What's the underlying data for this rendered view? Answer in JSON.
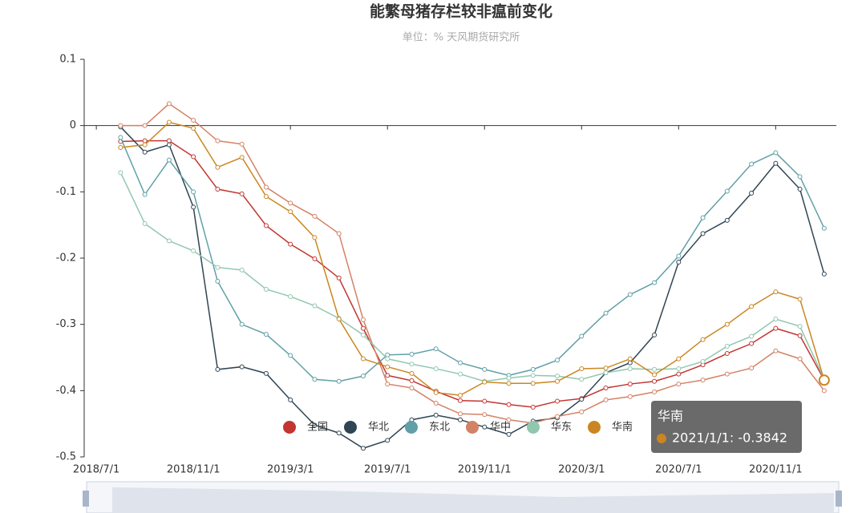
{
  "chart_data": {
    "type": "line",
    "title": "能繁母猪存栏较非瘟前变化",
    "subtitle": "单位：%    天风期货研究所",
    "x": [
      "2018/8/1",
      "2018/9/1",
      "2018/10/1",
      "2018/11/1",
      "2018/12/1",
      "2019/1/1",
      "2019/2/1",
      "2019/3/1",
      "2019/4/1",
      "2019/5/1",
      "2019/6/1",
      "2019/7/1",
      "2019/8/1",
      "2019/9/1",
      "2019/10/1",
      "2019/11/1",
      "2019/12/1",
      "2020/1/1",
      "2020/2/1",
      "2020/3/1",
      "2020/4/1",
      "2020/5/1",
      "2020/6/1",
      "2020/7/1",
      "2020/8/1",
      "2020/9/1",
      "2020/10/1",
      "2020/11/1",
      "2020/12/1",
      "2021/1/1"
    ],
    "xticks": [
      "2018/7/1",
      "2018/11/1",
      "2019/3/1",
      "2019/7/1",
      "2019/11/1",
      "2020/3/1",
      "2020/7/1",
      "2020/11/1"
    ],
    "ylim": [
      -0.5,
      0.1
    ],
    "yticks": [
      0.1,
      0,
      -0.1,
      -0.2,
      -0.3,
      -0.4,
      -0.5
    ],
    "series": [
      {
        "name": "全国",
        "color": "#c23531",
        "values": [
          -0.024,
          -0.023,
          -0.023,
          -0.047,
          -0.096,
          -0.103,
          -0.151,
          -0.179,
          -0.201,
          -0.23,
          -0.306,
          -0.377,
          -0.385,
          -0.401,
          -0.415,
          -0.416,
          -0.421,
          -0.425,
          -0.416,
          -0.412,
          -0.396,
          -0.39,
          -0.386,
          -0.375,
          -0.361,
          -0.344,
          -0.329,
          -0.306,
          -0.317,
          -0.384
        ]
      },
      {
        "name": "华北",
        "color": "#2f4554",
        "values": [
          -0.002,
          -0.04,
          -0.029,
          -0.123,
          -0.368,
          -0.364,
          -0.374,
          -0.414,
          -0.452,
          -0.464,
          -0.487,
          -0.475,
          -0.444,
          -0.437,
          -0.444,
          -0.455,
          -0.466,
          -0.446,
          -0.441,
          -0.413,
          -0.373,
          -0.358,
          -0.316,
          -0.206,
          -0.163,
          -0.143,
          -0.102,
          -0.057,
          -0.096,
          -0.224
        ]
      },
      {
        "name": "东北",
        "color": "#61a0a8",
        "values": [
          -0.018,
          -0.104,
          -0.052,
          -0.1,
          -0.235,
          -0.3,
          -0.315,
          -0.347,
          -0.383,
          -0.386,
          -0.378,
          -0.346,
          -0.345,
          -0.337,
          -0.358,
          -0.368,
          -0.377,
          -0.368,
          -0.354,
          -0.318,
          -0.283,
          -0.255,
          -0.237,
          -0.197,
          -0.139,
          -0.099,
          -0.058,
          -0.041,
          -0.077,
          -0.155
        ]
      },
      {
        "name": "华中",
        "color": "#d48265",
        "values": [
          0,
          0,
          0.033,
          0.008,
          -0.023,
          -0.028,
          -0.093,
          -0.117,
          -0.137,
          -0.163,
          -0.293,
          -0.39,
          -0.396,
          -0.419,
          -0.435,
          -0.436,
          -0.444,
          -0.449,
          -0.439,
          -0.432,
          -0.414,
          -0.409,
          -0.402,
          -0.39,
          -0.384,
          -0.375,
          -0.366,
          -0.34,
          -0.352,
          -0.4
        ]
      },
      {
        "name": "华东",
        "color": "#91c7ae",
        "values": [
          -0.071,
          -0.148,
          -0.174,
          -0.189,
          -0.214,
          -0.218,
          -0.247,
          -0.258,
          -0.272,
          -0.291,
          -0.316,
          -0.352,
          -0.36,
          -0.367,
          -0.375,
          -0.386,
          -0.381,
          -0.377,
          -0.378,
          -0.383,
          -0.373,
          -0.367,
          -0.368,
          -0.367,
          -0.356,
          -0.333,
          -0.318,
          -0.292,
          -0.303,
          -0.383
        ]
      },
      {
        "name": "华南",
        "color": "#ca8622",
        "values": [
          -0.033,
          -0.029,
          0.005,
          -0.004,
          -0.063,
          -0.048,
          -0.107,
          -0.13,
          -0.169,
          -0.292,
          -0.352,
          -0.364,
          -0.374,
          -0.403,
          -0.407,
          -0.387,
          -0.389,
          -0.389,
          -0.386,
          -0.367,
          -0.366,
          -0.352,
          -0.376,
          -0.352,
          -0.323,
          -0.3,
          -0.273,
          -0.251,
          -0.262,
          -0.3842
        ]
      }
    ],
    "tooltip": {
      "title": "华南",
      "text": "2021/1/1: -0.3842"
    }
  }
}
